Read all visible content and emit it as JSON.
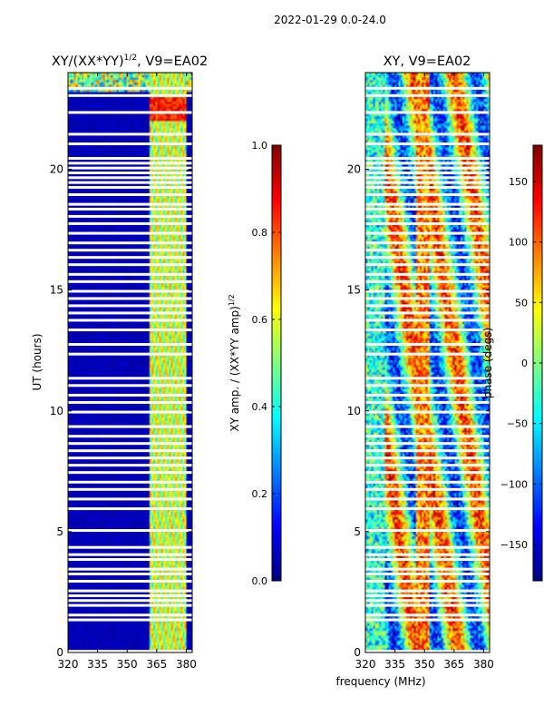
{
  "figure_title": "2022-01-29 0.0-24.0",
  "colors": {
    "jet": [
      "#00007f",
      "#0000ff",
      "#007fff",
      "#00ffff",
      "#7fff7f",
      "#ffff00",
      "#ff7f00",
      "#ff0000",
      "#7f0000"
    ],
    "gap": "#ffffff",
    "axis": "#000000"
  },
  "chart_data": [
    {
      "type": "heatmap",
      "title_main": "XY/(XX*YY)",
      "title_exp": "1/2",
      "title_tail": ", V9=EA02",
      "ylabel": "UT (hours)",
      "xlabel": "",
      "xlim": [
        320,
        383
      ],
      "ylim": [
        0,
        24
      ],
      "xticks": [
        320,
        335,
        350,
        365,
        380
      ],
      "xtick_labels": [
        "320",
        "335",
        "350",
        "365",
        "380"
      ],
      "yticks": [
        0,
        5,
        10,
        15,
        20
      ],
      "ytick_labels": [
        "0",
        "5",
        "10",
        "15",
        "20"
      ],
      "colorbar": {
        "label_main": "XY amp. / (XX*YY amp)",
        "label_exp": "1/2",
        "range": [
          0.0,
          1.0
        ],
        "ticks": [
          0.0,
          0.2,
          0.4,
          0.6,
          0.8,
          1.0
        ],
        "tick_labels": [
          "0.0",
          "0.2",
          "0.4",
          "0.6",
          "0.8",
          "1.0"
        ]
      }
    },
    {
      "type": "heatmap",
      "title_main": "XY, V9=EA02",
      "title_exp": "",
      "title_tail": "",
      "ylabel": "",
      "xlabel": "frequency (MHz)",
      "xlim": [
        320,
        383
      ],
      "ylim": [
        0,
        24
      ],
      "xticks": [
        320,
        335,
        350,
        365,
        380
      ],
      "xtick_labels": [
        "320",
        "335",
        "350",
        "365",
        "380"
      ],
      "yticks": [
        0,
        5,
        10,
        15,
        20
      ],
      "ytick_labels": [
        "0",
        "5",
        "10",
        "15",
        "20"
      ],
      "colorbar": {
        "label_main": "phase (degs)",
        "label_exp": "",
        "range": [
          -180,
          180
        ],
        "ticks": [
          -150,
          -100,
          -50,
          0,
          50,
          100,
          150
        ],
        "tick_labels": [
          "−150",
          "−100",
          "−50",
          "0",
          "50",
          "100",
          "150"
        ]
      }
    }
  ],
  "flagged_hours": [
    0.05,
    1.35,
    1.55,
    1.95,
    2.15,
    2.35,
    2.55,
    2.95,
    3.25,
    3.45,
    3.85,
    4.05,
    4.35,
    5.05,
    5.95,
    6.35,
    6.75,
    7.05,
    7.45,
    7.75,
    8.05,
    8.35,
    8.65,
    8.95,
    9.35,
    9.95,
    10.35,
    10.65,
    11.05,
    11.35,
    12.35,
    12.75,
    13.35,
    13.75,
    14.05,
    14.35,
    14.65,
    14.95,
    15.35,
    15.65,
    16.05,
    16.35,
    16.65,
    16.95,
    17.35,
    17.75,
    18.05,
    18.35,
    18.55,
    18.95,
    19.25,
    19.45,
    19.65,
    19.85,
    20.05,
    20.25,
    20.45,
    21.05,
    21.45,
    22.35,
    23.05,
    23.35
  ]
}
